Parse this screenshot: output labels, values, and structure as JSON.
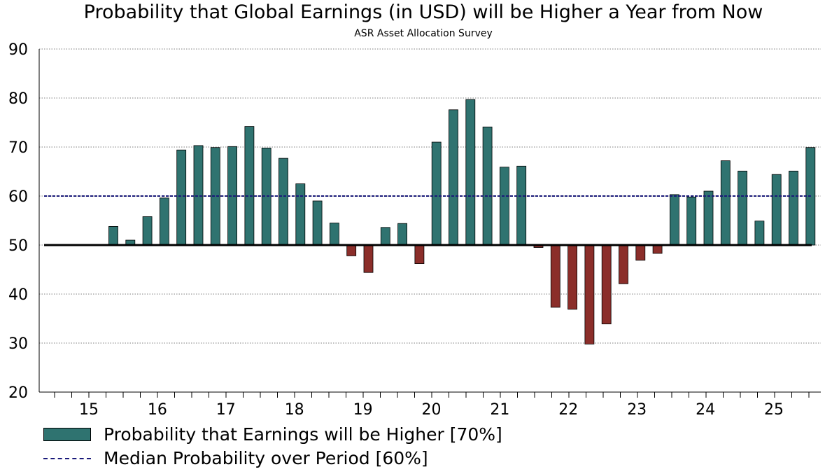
{
  "chart_data": {
    "type": "bar",
    "title": "Probability that Global Earnings (in USD) will be Higher a Year from Now",
    "subtitle": "ASR Asset Allocation Survey",
    "baseline": 50,
    "median": 60,
    "ylim": [
      20,
      90
    ],
    "yticks": [
      20,
      30,
      40,
      50,
      60,
      70,
      80,
      90
    ],
    "xlabels": [
      "15",
      "16",
      "17",
      "18",
      "19",
      "20",
      "21",
      "22",
      "23",
      "24",
      "25"
    ],
    "values": [
      53.8,
      51.0,
      55.8,
      59.6,
      69.4,
      70.3,
      69.9,
      70.1,
      74.2,
      69.8,
      67.7,
      62.5,
      59.0,
      54.5,
      47.8,
      44.4,
      53.6,
      54.4,
      46.2,
      71.0,
      77.6,
      79.7,
      74.1,
      65.9,
      66.1,
      49.5,
      37.3,
      36.9,
      29.8,
      33.9,
      42.1,
      46.9,
      48.3,
      60.3,
      59.8,
      61.0,
      67.2,
      65.1,
      54.9,
      64.4,
      65.1,
      69.9
    ],
    "positive_color": "#2f7370",
    "negative_color": "#8b2e2a",
    "median_color": "#1a1a7a"
  },
  "legend": {
    "bars_label": "Probability that Earnings will be Higher [70%]",
    "median_label": "Median Probability over Period [60%]"
  }
}
